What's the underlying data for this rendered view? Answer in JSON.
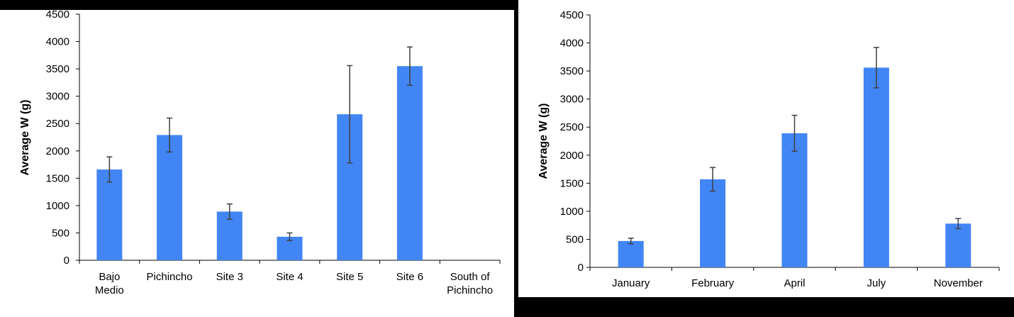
{
  "colors": {
    "bar": "#4285f4",
    "error_bar": "#404040",
    "axis": "#000000",
    "panel_bg": "#ffffff",
    "page_bg": "#000000"
  },
  "chart_data": [
    {
      "type": "bar",
      "title": "",
      "xlabel": "",
      "ylabel": "Average W (g)",
      "ylim": [
        0,
        4500
      ],
      "yticks": [
        0,
        500,
        1000,
        1500,
        2000,
        2500,
        3000,
        3500,
        4000,
        4500
      ],
      "grid": false,
      "legend": "none",
      "categories": [
        "Bajo Medio",
        "Pichincho",
        "Site 3",
        "Site 4",
        "Site 5",
        "Site 6",
        "South of Pichincho"
      ],
      "category_lines": [
        [
          "Bajo",
          "Medio"
        ],
        [
          "Pichincho"
        ],
        [
          "Site 3"
        ],
        [
          "Site 4"
        ],
        [
          "Site 5"
        ],
        [
          "Site 6"
        ],
        [
          "South of",
          "Pichincho"
        ]
      ],
      "values": [
        1660,
        2290,
        890,
        430,
        2670,
        3550,
        null
      ],
      "error": [
        230,
        310,
        140,
        70,
        890,
        350,
        null
      ]
    },
    {
      "type": "bar",
      "title": "",
      "xlabel": "",
      "ylabel": "Average W (g)",
      "ylim": [
        0,
        4500
      ],
      "yticks": [
        0,
        500,
        1000,
        1500,
        2000,
        2500,
        3000,
        3500,
        4000,
        4500
      ],
      "grid": false,
      "legend": "none",
      "categories": [
        "January",
        "February",
        "April",
        "July",
        "November"
      ],
      "category_lines": [
        [
          "January"
        ],
        [
          "February"
        ],
        [
          "April"
        ],
        [
          "July"
        ],
        [
          "November"
        ]
      ],
      "values": [
        470,
        1570,
        2390,
        3560,
        780
      ],
      "error": [
        50,
        210,
        320,
        360,
        90
      ]
    }
  ]
}
